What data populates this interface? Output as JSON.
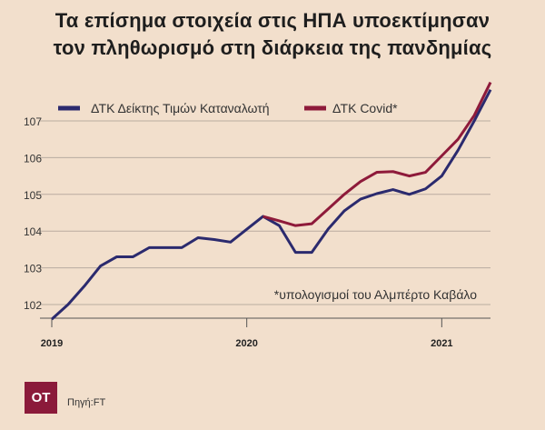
{
  "title_lines": [
    "Τα επίσημα στοιχεία στις ΗΠΑ υποεκτίμησαν",
    "τον πληθωρισμό στη διάρκεια της πανδημίας"
  ],
  "logo": "OT",
  "source": "Πηγή:FT",
  "colors": {
    "background": "#f2dfcc",
    "cpi": "#2b2a6e",
    "covid": "#8e1a3a",
    "logo": "#8b1a3a"
  },
  "chart_data": {
    "type": "line",
    "title": "Τα επίσημα στοιχεία στις ΗΠΑ υποεκτίμησαν τον πληθωρισμό στη διάρκεια της πανδημίας",
    "xlabel": "",
    "ylabel": "",
    "x_unit": "month index from Jan 2019",
    "xlim": [
      0,
      27
    ],
    "ylim": [
      101.6,
      108.2
    ],
    "yticks": [
      102,
      103,
      104,
      105,
      106,
      107
    ],
    "xticks": [
      {
        "value": 0,
        "label": "2019"
      },
      {
        "value": 12,
        "label": "2020"
      },
      {
        "value": 24,
        "label": "2021"
      }
    ],
    "grid": true,
    "legend_position": "top",
    "annotation": "*υπολογισμοί του Αλμπέρτο Καβάλο",
    "series": [
      {
        "name": "ΔΤΚ Δείκτης Τιμών Καταναλωτή",
        "color": "#2b2a6e",
        "x": [
          0,
          1,
          2,
          3,
          4,
          5,
          6,
          7,
          8,
          9,
          10,
          11,
          12,
          13,
          14,
          15,
          16,
          17,
          18,
          19,
          20,
          21,
          22,
          23,
          24,
          25,
          26,
          27
        ],
        "values": [
          101.6,
          102.0,
          102.5,
          103.05,
          103.3,
          103.3,
          103.55,
          103.55,
          103.55,
          103.82,
          103.77,
          103.7,
          104.05,
          104.4,
          104.15,
          103.42,
          103.42,
          104.05,
          104.55,
          104.87,
          105.02,
          105.13,
          105.0,
          105.15,
          105.5,
          106.2,
          107.0,
          107.85
        ]
      },
      {
        "name": "ΔΤΚ Covid*",
        "color": "#8e1a3a",
        "x": [
          13,
          14,
          15,
          16,
          17,
          18,
          19,
          20,
          21,
          22,
          23,
          24,
          25,
          26,
          27
        ],
        "values": [
          104.4,
          104.28,
          104.15,
          104.2,
          104.6,
          105.0,
          105.35,
          105.6,
          105.62,
          105.5,
          105.6,
          106.05,
          106.5,
          107.15,
          108.05
        ]
      }
    ]
  }
}
